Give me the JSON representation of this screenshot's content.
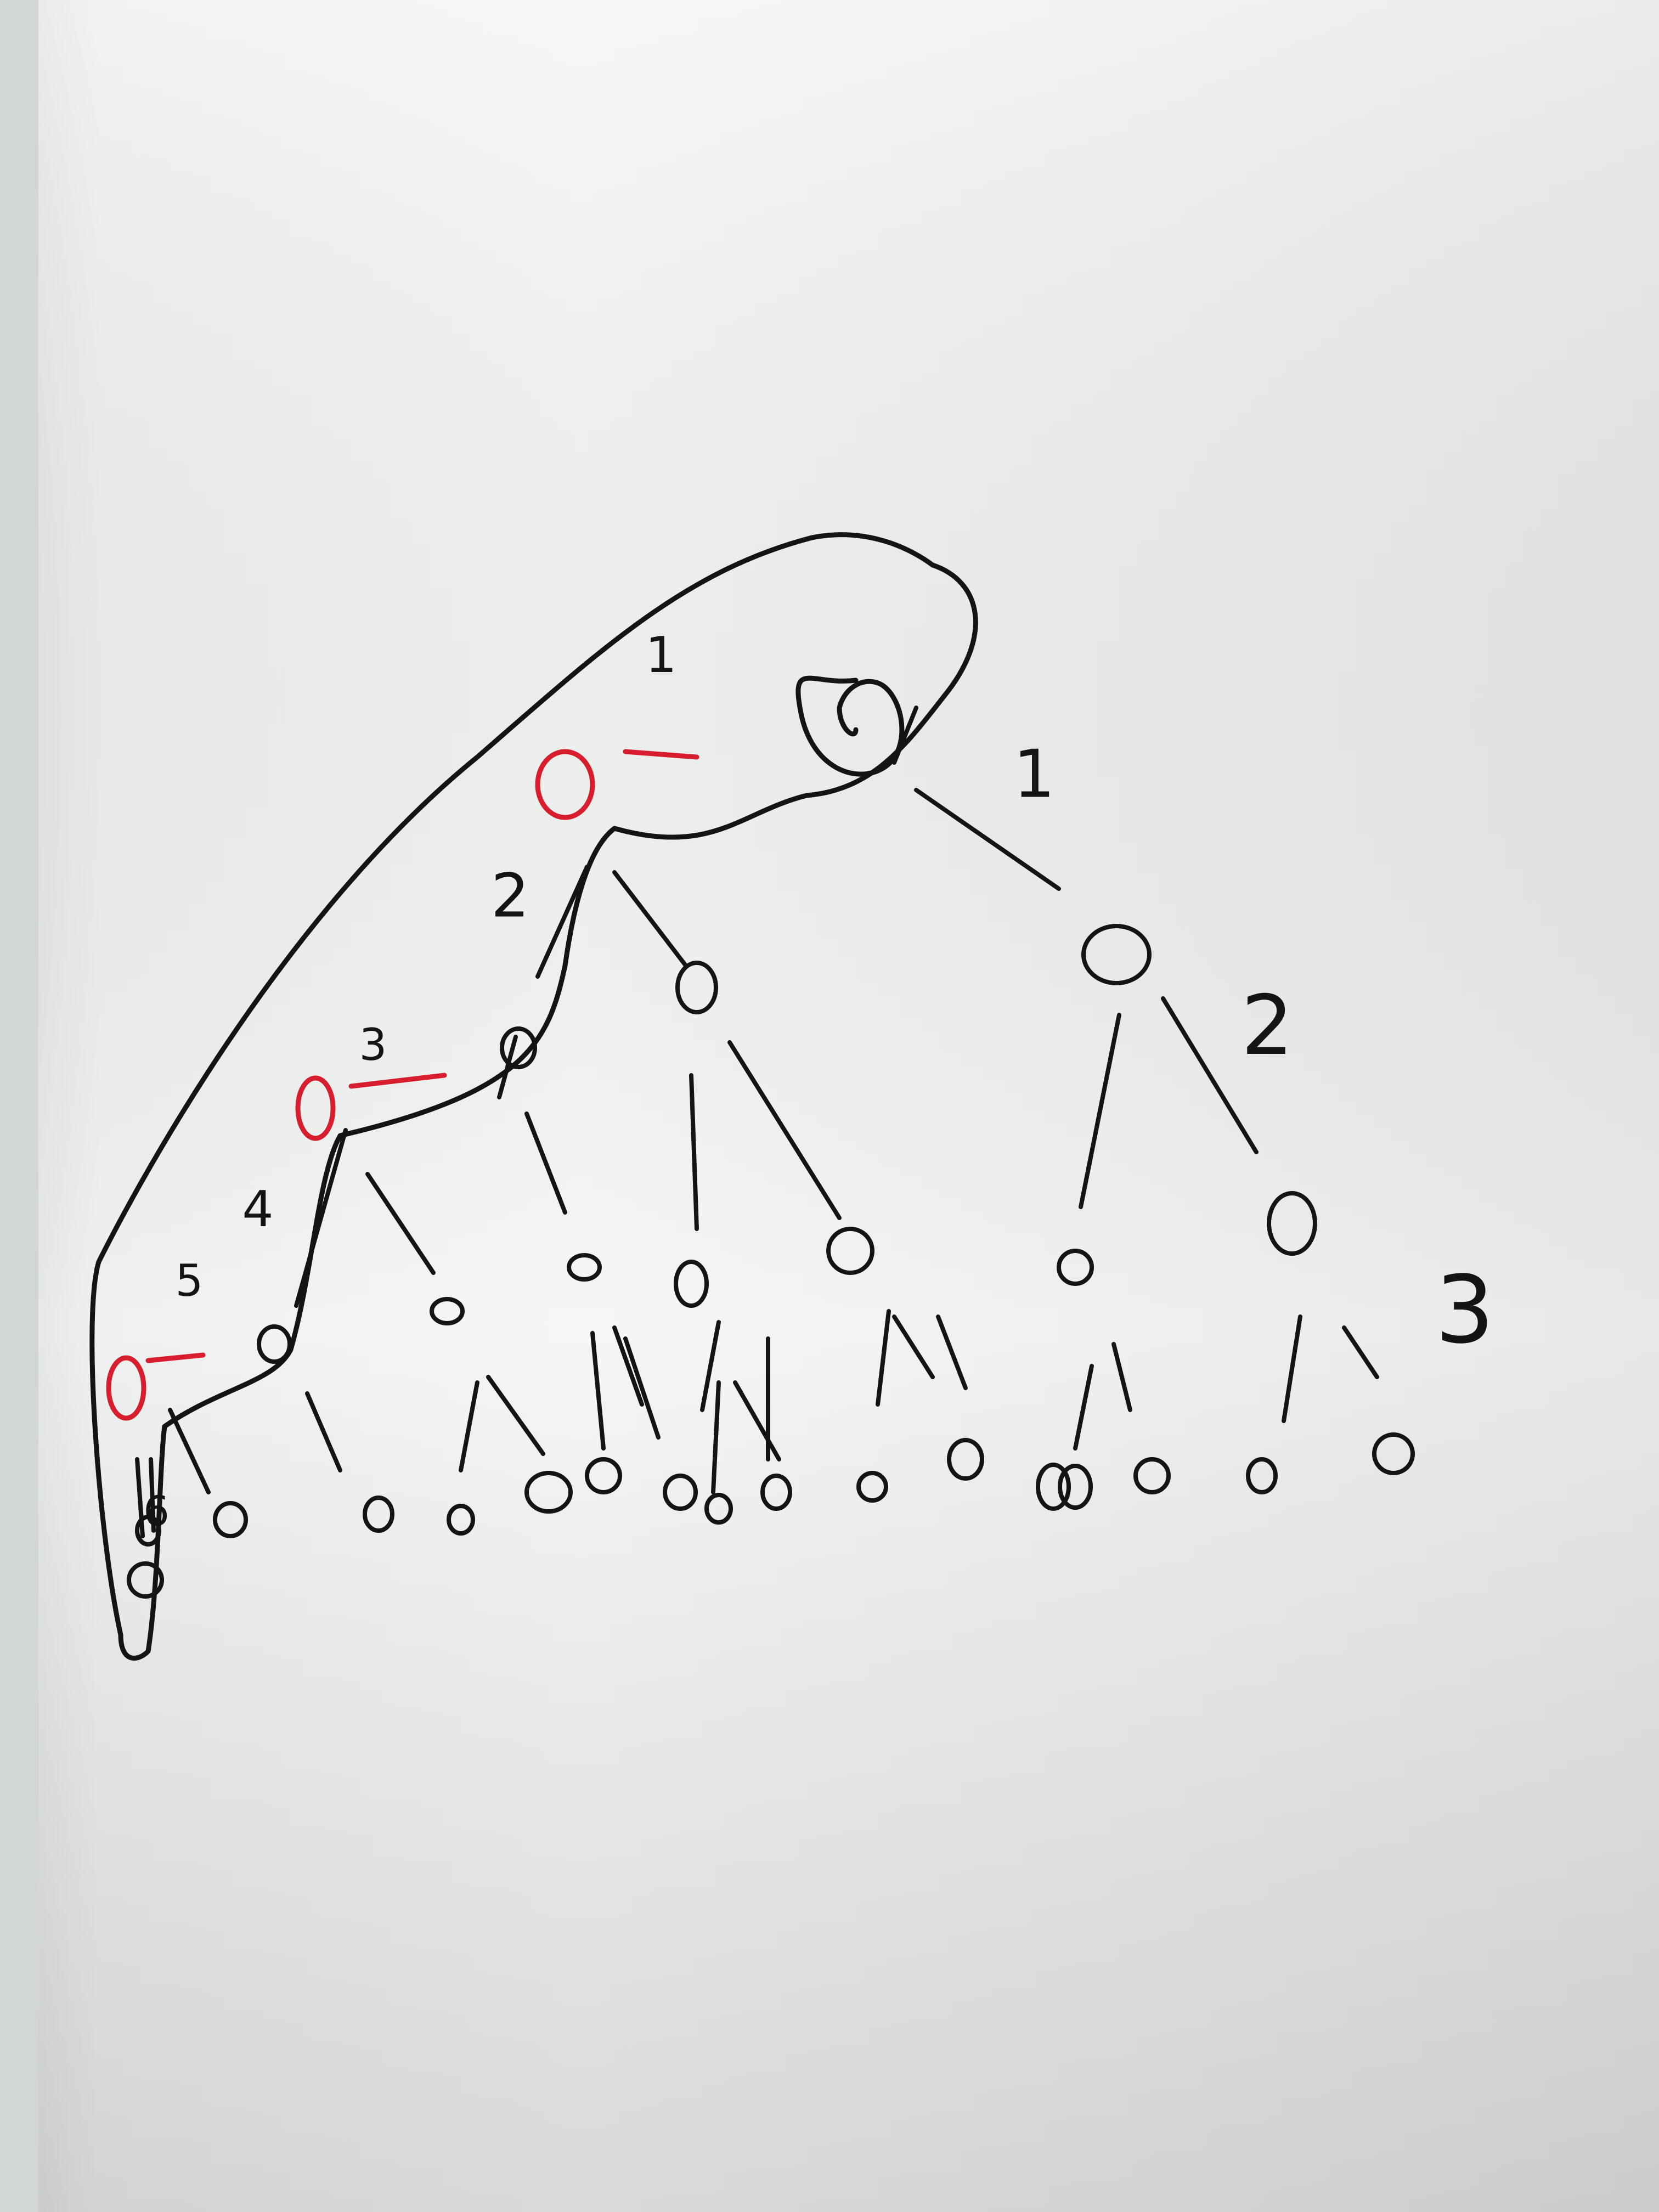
{
  "colors": {
    "ink": "#141414",
    "red_ink": "#d81d2f",
    "paper_light": "#f4f6f4",
    "paper_mid": "#e8ebe8",
    "paper_shadow": "#c9ccca"
  },
  "labels": {
    "edge_root_left": "1",
    "edge_root_right": "1",
    "edge_level2_left": "2",
    "edge_level2_right": "2",
    "edge_level3_left": "3",
    "edge_level3_right": "3",
    "edge_level4_left": "4",
    "edge_level5_left": "5",
    "edge_level6_left": "6"
  },
  "tree": {
    "description_free": true,
    "highlighted_path_nodes": 6,
    "red_sibling_nodes": 3
  }
}
